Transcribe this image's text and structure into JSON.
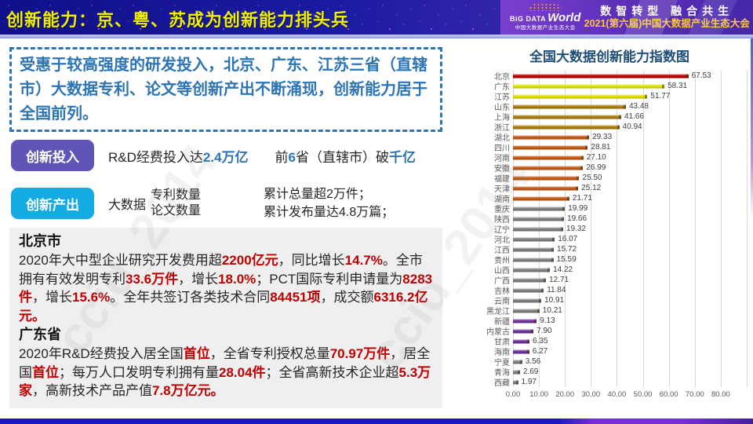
{
  "header": {
    "title": "创新能力：京、粤、苏成为创新能力排头兵",
    "logo_big": "BiG DATA",
    "logo_world": "World",
    "logo_sub": "中国大数据产业生态大会",
    "slogan": "数智转型 融合共生",
    "event": "2021(第六届)中国大数据产业生态大会"
  },
  "colors": {
    "accent_blue": "#2e75b6",
    "highlight_red": "#c00000",
    "pill_input": "#5f55b7",
    "pill_output": "#14aae4",
    "chart_title_blue": "#1f4e79",
    "bar_red": "#c00000",
    "bar_yellow": "#e2e200",
    "bar_gold": "#ab7d0c",
    "bar_orange": "#c55a11",
    "bar_gray": "#7f7f7f",
    "bar_purple": "#7030a0"
  },
  "summary": {
    "text": "受惠于较高强度的研发投入，北京、广东、江苏三省（直辖市）大数据专利、论文等创新产出不断涌现，创新能力居于全国前列。"
  },
  "innovation_input": {
    "pill": "创新投入",
    "phrase1": [
      {
        "t": "R&D经费投入达"
      },
      {
        "t": "2.4万亿",
        "hl": true
      }
    ],
    "phrase2": [
      {
        "t": "前"
      },
      {
        "t": "6",
        "hl": true
      },
      {
        "t": "省（直辖市）破"
      },
      {
        "t": "千亿",
        "hl": true
      }
    ]
  },
  "innovation_output": {
    "pill": "创新产出",
    "prefix": "大数据",
    "metrics": [
      "专利数量",
      "论文数量"
    ],
    "results": [
      "累计总量超2万件；",
      "累计发布量达4.8万篇；"
    ]
  },
  "details": {
    "sections": [
      {
        "title": "北京市",
        "segments": [
          {
            "t": "2020年大中型企业研究开发费用超"
          },
          {
            "t": "2200亿元",
            "hl": true
          },
          {
            "t": "，同比增长"
          },
          {
            "t": "14.7%",
            "hl": true
          },
          {
            "t": "。全市拥有有效发明专利"
          },
          {
            "t": "33.6万件",
            "hl": true
          },
          {
            "t": "，增长"
          },
          {
            "t": "18.0%",
            "hl": true
          },
          {
            "t": "；PCT国际专利申请量为"
          },
          {
            "t": "8283件",
            "hl": true
          },
          {
            "t": "，增长"
          },
          {
            "t": "15.6%",
            "hl": true
          },
          {
            "t": "。全年共签订各类技术合同"
          },
          {
            "t": "84451项",
            "hl": true
          },
          {
            "t": "，成交额"
          },
          {
            "t": "6316.2亿元。",
            "hl": true
          }
        ]
      },
      {
        "title": "广东省",
        "segments": [
          {
            "t": "2020年R&D经费投入居全国"
          },
          {
            "t": "首位",
            "hl": true
          },
          {
            "t": "，全省专利授权总量"
          },
          {
            "t": "70.97万件",
            "hl": true
          },
          {
            "t": "，居全国"
          },
          {
            "t": "首位",
            "hl": true
          },
          {
            "t": "；每万人口发明专利拥有量"
          },
          {
            "t": "28.04件",
            "hl": true
          },
          {
            "t": "；全省高新技术企业超"
          },
          {
            "t": "5.3万家",
            "hl": true
          },
          {
            "t": "，高新技术产品产值"
          },
          {
            "t": "7.8万亿元。",
            "hl": true
          }
        ]
      }
    ]
  },
  "watermark": "ccid_2014",
  "chart_data": {
    "type": "bar",
    "orientation": "horizontal",
    "title": "全国大数据创新能力指数图",
    "xlabel": "",
    "ylabel": "",
    "xlim": [
      0,
      90
    ],
    "grid": true,
    "x_ticks": [
      "0.00",
      "10.00",
      "20.00",
      "30.00",
      "40.00",
      "50.00",
      "60.00",
      "70.00",
      "80.00"
    ],
    "rows": [
      {
        "name": "北京",
        "value": 67.53,
        "tier": "red"
      },
      {
        "name": "广东",
        "value": 58.31,
        "tier": "yellow"
      },
      {
        "name": "江苏",
        "value": 51.77,
        "tier": "yellow"
      },
      {
        "name": "山东",
        "value": 43.48,
        "tier": "gold"
      },
      {
        "name": "上海",
        "value": 41.66,
        "tier": "gold"
      },
      {
        "name": "浙江",
        "value": 40.94,
        "tier": "gold"
      },
      {
        "name": "湖北",
        "value": 29.33,
        "tier": "orange"
      },
      {
        "name": "四川",
        "value": 28.81,
        "tier": "orange"
      },
      {
        "name": "河南",
        "value": 27.1,
        "tier": "orange"
      },
      {
        "name": "安徽",
        "value": 26.99,
        "tier": "orange"
      },
      {
        "name": "福建",
        "value": 25.5,
        "tier": "orange"
      },
      {
        "name": "天津",
        "value": 25.12,
        "tier": "orange"
      },
      {
        "name": "湖南",
        "value": 21.71,
        "tier": "orange"
      },
      {
        "name": "重庆",
        "value": 19.99,
        "tier": "gray"
      },
      {
        "name": "陕西",
        "value": 19.66,
        "tier": "gray"
      },
      {
        "name": "辽宁",
        "value": 19.32,
        "tier": "gray"
      },
      {
        "name": "河北",
        "value": 16.07,
        "tier": "gray"
      },
      {
        "name": "江西",
        "value": 15.72,
        "tier": "gray"
      },
      {
        "name": "贵州",
        "value": 15.59,
        "tier": "gray"
      },
      {
        "name": "山西",
        "value": 14.22,
        "tier": "gray"
      },
      {
        "name": "广西",
        "value": 12.71,
        "tier": "gray"
      },
      {
        "name": "吉林",
        "value": 11.84,
        "tier": "gray"
      },
      {
        "name": "云南",
        "value": 10.91,
        "tier": "gray"
      },
      {
        "name": "黑龙江",
        "value": 10.21,
        "tier": "gray"
      },
      {
        "name": "新疆",
        "value": 9.13,
        "tier": "purple"
      },
      {
        "name": "内蒙古",
        "value": 7.9,
        "tier": "purple"
      },
      {
        "name": "甘肃",
        "value": 6.35,
        "tier": "purple"
      },
      {
        "name": "海南",
        "value": 6.27,
        "tier": "purple"
      },
      {
        "name": "宁夏",
        "value": 3.56,
        "tier": "gray"
      },
      {
        "name": "青海",
        "value": 2.69,
        "tier": "gray"
      },
      {
        "name": "西藏",
        "value": 1.97,
        "tier": "gray"
      }
    ]
  }
}
